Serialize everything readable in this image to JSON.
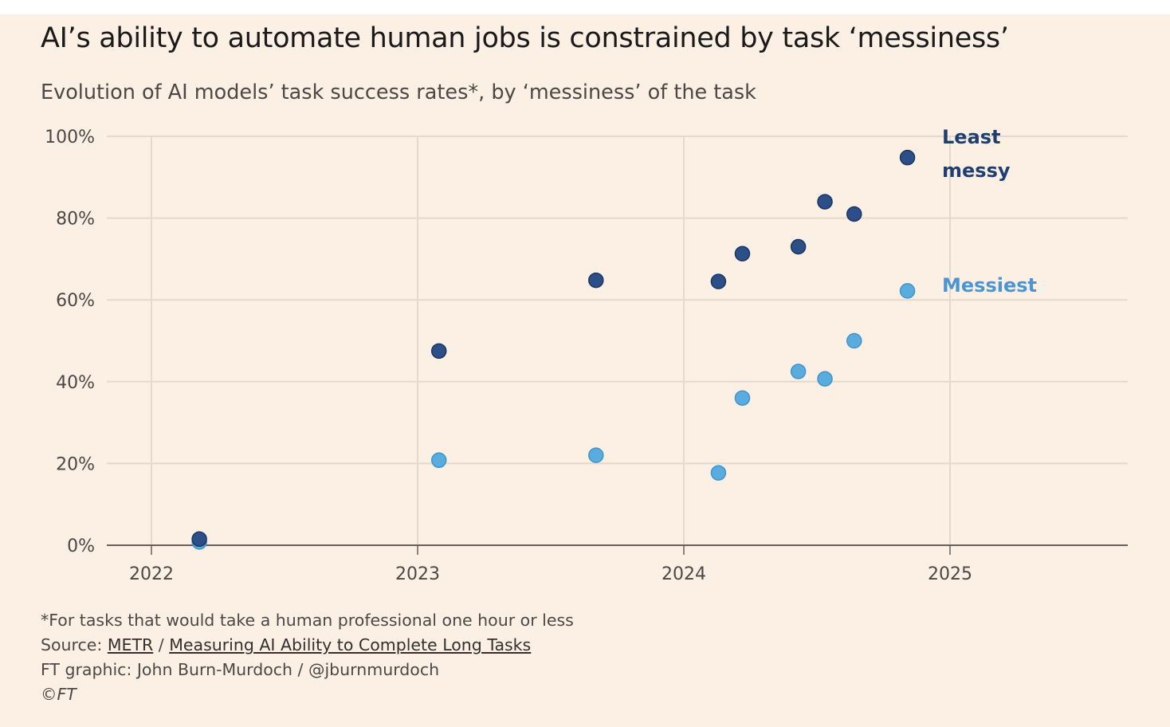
{
  "title": "AI’s ability to automate human jobs is constrained by task ‘messiness’",
  "subtitle": "Evolution of AI models’ task success rates*, by ‘messiness’ of the task",
  "chart_data": {
    "type": "scatter",
    "title": "AI’s ability to automate human jobs is constrained by task ‘messiness’",
    "subtitle": "Evolution of AI models’ task success rates*, by ‘messiness’ of the task",
    "xlim": [
      2021.83,
      2025.67
    ],
    "ylim": [
      0,
      100
    ],
    "x_ticks": [
      2022,
      2023,
      2024,
      2025
    ],
    "x_tick_labels": [
      "2022",
      "2023",
      "2024",
      "2025"
    ],
    "y_ticks": [
      0,
      20,
      40,
      60,
      80,
      100
    ],
    "y_tick_labels": [
      "0%",
      "20%",
      "40%",
      "60%",
      "80%",
      "100%"
    ],
    "grid": true,
    "series": [
      {
        "name": "Least messy",
        "label_lines": [
          "Least",
          "messy"
        ],
        "color": "#2b4f86",
        "points": [
          {
            "x": 2022.18,
            "y": 1.5
          },
          {
            "x": 2023.08,
            "y": 47.5
          },
          {
            "x": 2023.67,
            "y": 64.8
          },
          {
            "x": 2024.13,
            "y": 64.5
          },
          {
            "x": 2024.22,
            "y": 71.3
          },
          {
            "x": 2024.43,
            "y": 73.0
          },
          {
            "x": 2024.53,
            "y": 84.0
          },
          {
            "x": 2024.64,
            "y": 81.0
          },
          {
            "x": 2024.84,
            "y": 94.8
          }
        ]
      },
      {
        "name": "Messiest",
        "label_lines": [
          "Messiest"
        ],
        "color": "#5aacdf",
        "points": [
          {
            "x": 2022.18,
            "y": 0.8
          },
          {
            "x": 2023.08,
            "y": 20.8
          },
          {
            "x": 2023.67,
            "y": 22.0
          },
          {
            "x": 2024.13,
            "y": 17.7
          },
          {
            "x": 2024.22,
            "y": 36.0
          },
          {
            "x": 2024.43,
            "y": 42.5
          },
          {
            "x": 2024.53,
            "y": 40.7
          },
          {
            "x": 2024.64,
            "y": 50.0
          },
          {
            "x": 2024.84,
            "y": 62.2
          }
        ]
      }
    ]
  },
  "footer": {
    "note": "*For tasks that would take a human professional one hour or less",
    "source_prefix": "Source: ",
    "source_link1": "METR",
    "source_sep": " / ",
    "source_link2": "Measuring AI Ability to Complete Long Tasks",
    "graphic_credit": "FT graphic: John Burn-Murdoch / @jburnmurdoch",
    "copyright": "©FT"
  }
}
